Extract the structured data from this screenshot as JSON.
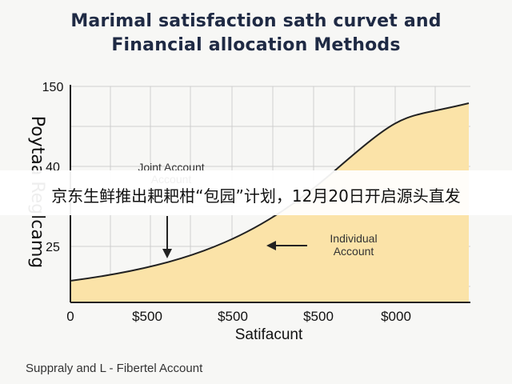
{
  "chart_data": {
    "type": "area",
    "title_line1": "Marimal satisfaction sath curvet and",
    "title_line2": "Financial allocation Methods",
    "ylabel": "Poytaa Reglcamg",
    "xlabel": "Satifacunt",
    "ytick_labels": [
      "150",
      "40",
      "25"
    ],
    "xtick_labels": [
      "0",
      "$500",
      "$500",
      "$500",
      "$000"
    ],
    "grid": true,
    "fill_color": "#fbe3a8",
    "line_color": "#222222",
    "annotations": [
      {
        "line1": "Joint Account",
        "line2": "Account"
      },
      {
        "line1": "Individual",
        "line2": "Account"
      }
    ]
  },
  "banner": {
    "text": "京东生鲜推出耙耙柑“包园”计划，12月20日开启源头直发"
  },
  "footer": {
    "text": "Suppraly and L - Fibertel Account"
  }
}
